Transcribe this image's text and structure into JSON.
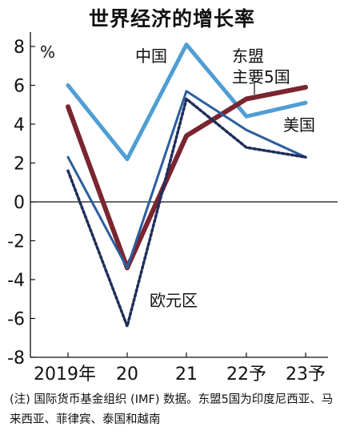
{
  "chart_data": {
    "type": "line",
    "title": "世界经济的增长率",
    "ylabel": "%",
    "categories": [
      "2019年",
      "20",
      "21",
      "22予",
      "23予"
    ],
    "ylim": [
      -8,
      8
    ],
    "yticks": [
      8,
      6,
      4,
      2,
      0,
      -2,
      -4,
      -6,
      -8
    ],
    "grid": false,
    "series": [
      {
        "name": "中国",
        "values": [
          6.0,
          2.2,
          8.1,
          4.4,
          5.1
        ],
        "color": "#4f9ed4",
        "dash": false,
        "width": 5
      },
      {
        "name": "东盟\n主要5国",
        "values": [
          4.9,
          -3.4,
          3.4,
          5.3,
          5.9
        ],
        "color": "#7a2530",
        "dash": false,
        "width": 6
      },
      {
        "name": "美国",
        "values": [
          2.3,
          -3.4,
          5.7,
          3.7,
          2.3
        ],
        "color": "#2c5e9e",
        "dash": false,
        "width": 3
      },
      {
        "name": "欧元区",
        "values": [
          1.6,
          -6.4,
          5.3,
          2.8,
          2.3
        ],
        "color": "#1f2f5a",
        "dash": true,
        "width": 3.5
      }
    ]
  },
  "note": "(注) 国际货币基金组织 (IMF) 数据。东盟5国为印度尼西亚、马来西亚、菲律宾、泰国和越南"
}
